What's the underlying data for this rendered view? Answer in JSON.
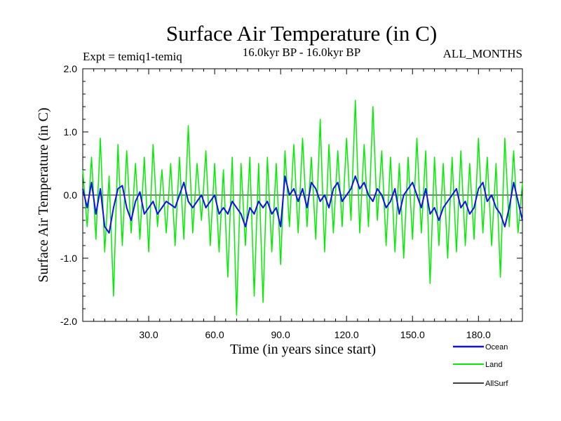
{
  "chart_data": {
    "type": "line",
    "title": "Surface Air Temperature (in C)",
    "experiment_label": "Expt = temiq1-temiq",
    "period_label": "16.0kyr BP - 16.0kyr BP",
    "months_label": "ALL_MONTHS",
    "xlabel": "Time (in years since start)",
    "ylabel": "Surface Air Temperature (in C)",
    "xlim": [
      0,
      200
    ],
    "ylim": [
      -2.0,
      2.0
    ],
    "xticks": [
      30,
      60,
      90,
      120,
      150,
      180
    ],
    "xtick_labels": [
      "30.0",
      "60.0",
      "90.0",
      "120.0",
      "150.0",
      "180.0"
    ],
    "yticks": [
      -2.0,
      -1.0,
      0.0,
      1.0,
      2.0
    ],
    "ytick_labels": [
      "-2.0",
      "-1.0",
      "0.0",
      "1.0",
      "2.0"
    ],
    "reference_line": 0.0,
    "legend_position": "bottom-right",
    "series": [
      {
        "name": "Land",
        "color": "#00ee00",
        "x": [
          0,
          2,
          4,
          6,
          8,
          10,
          12,
          14,
          16,
          18,
          20,
          22,
          24,
          26,
          28,
          30,
          32,
          34,
          36,
          38,
          40,
          42,
          44,
          46,
          48,
          50,
          52,
          54,
          56,
          58,
          60,
          62,
          64,
          66,
          68,
          70,
          72,
          74,
          76,
          78,
          80,
          82,
          84,
          86,
          88,
          90,
          92,
          94,
          96,
          98,
          100,
          102,
          104,
          106,
          108,
          110,
          112,
          114,
          116,
          118,
          120,
          122,
          124,
          126,
          128,
          130,
          132,
          134,
          136,
          138,
          140,
          142,
          144,
          146,
          148,
          150,
          152,
          154,
          156,
          158,
          160,
          162,
          164,
          166,
          168,
          170,
          172,
          174,
          176,
          178,
          180,
          182,
          184,
          186,
          188,
          190,
          192,
          194,
          196,
          198,
          200
        ],
        "values": [
          0.4,
          -0.5,
          0.6,
          -0.7,
          0.9,
          -0.9,
          0.3,
          -1.6,
          0.8,
          -0.8,
          0.7,
          -0.6,
          0.5,
          -0.7,
          0.6,
          -0.9,
          0.8,
          -0.5,
          0.4,
          -0.6,
          0.5,
          -0.8,
          0.6,
          -0.7,
          1.1,
          -0.6,
          0.5,
          -0.4,
          0.7,
          -0.8,
          0.5,
          -0.9,
          0.4,
          -1.3,
          0.6,
          -1.9,
          0.5,
          -0.8,
          0.6,
          -1.6,
          0.5,
          -1.7,
          0.6,
          -0.9,
          0.5,
          -1.1,
          0.7,
          -0.5,
          0.8,
          -0.6,
          0.9,
          -0.5,
          0.6,
          -0.7,
          1.2,
          -0.9,
          0.8,
          -0.6,
          0.7,
          -0.5,
          0.9,
          -0.4,
          1.5,
          -0.6,
          0.8,
          -0.5,
          1.4,
          -0.4,
          0.7,
          -0.8,
          0.6,
          -0.9,
          0.5,
          -1.0,
          0.6,
          -0.7,
          0.9,
          -0.6,
          0.7,
          -1.4,
          0.6,
          -0.8,
          0.5,
          -1.0,
          0.6,
          -0.9,
          0.7,
          -0.8,
          0.5,
          -0.7,
          0.9,
          -0.6,
          0.6,
          -0.8,
          0.5,
          -1.3,
          0.9,
          -0.5,
          0.7,
          -0.6,
          0.2
        ]
      },
      {
        "name": "Ocean",
        "color": "#1010ee",
        "x": [
          0,
          2,
          4,
          6,
          8,
          10,
          12,
          14,
          16,
          18,
          20,
          22,
          24,
          26,
          28,
          30,
          32,
          34,
          36,
          38,
          40,
          42,
          44,
          46,
          48,
          50,
          52,
          54,
          56,
          58,
          60,
          62,
          64,
          66,
          68,
          70,
          72,
          74,
          76,
          78,
          80,
          82,
          84,
          86,
          88,
          90,
          92,
          94,
          96,
          98,
          100,
          102,
          104,
          106,
          108,
          110,
          112,
          114,
          116,
          118,
          120,
          122,
          124,
          126,
          128,
          130,
          132,
          134,
          136,
          138,
          140,
          142,
          144,
          146,
          148,
          150,
          152,
          154,
          156,
          158,
          160,
          162,
          164,
          166,
          168,
          170,
          172,
          174,
          176,
          178,
          180,
          182,
          184,
          186,
          188,
          190,
          192,
          194,
          196,
          198,
          200
        ],
        "values": [
          0.1,
          -0.2,
          0.2,
          -0.3,
          0.1,
          -0.5,
          -0.6,
          -0.2,
          0.1,
          0.15,
          -0.2,
          -0.4,
          -0.1,
          0.05,
          -0.3,
          -0.2,
          -0.1,
          -0.3,
          -0.2,
          -0.1,
          -0.15,
          -0.2,
          0.0,
          0.2,
          -0.1,
          -0.2,
          -0.1,
          0.0,
          -0.2,
          -0.1,
          0.0,
          -0.3,
          -0.2,
          -0.3,
          -0.1,
          -0.2,
          -0.3,
          -0.5,
          -0.2,
          -0.3,
          -0.1,
          -0.2,
          -0.1,
          -0.3,
          -0.2,
          -0.5,
          0.3,
          0.0,
          0.1,
          -0.1,
          0.1,
          -0.2,
          0.2,
          0.1,
          -0.1,
          0.0,
          -0.2,
          0.1,
          0.2,
          -0.1,
          0.0,
          0.1,
          0.3,
          0.1,
          0.2,
          0.0,
          -0.1,
          0.1,
          0.0,
          -0.2,
          -0.1,
          0.1,
          -0.3,
          0.0,
          0.1,
          0.2,
          0.0,
          -0.2,
          0.1,
          -0.3,
          -0.2,
          -0.4,
          -0.2,
          -0.1,
          0.0,
          0.1,
          -0.2,
          -0.1,
          -0.3,
          -0.2,
          0.1,
          0.2,
          -0.1,
          0.0,
          -0.2,
          -0.3,
          -0.5,
          -0.2,
          0.2,
          -0.1,
          -0.4
        ]
      },
      {
        "name": "AllSurf",
        "color": "#000000",
        "x": [],
        "values": []
      }
    ]
  }
}
